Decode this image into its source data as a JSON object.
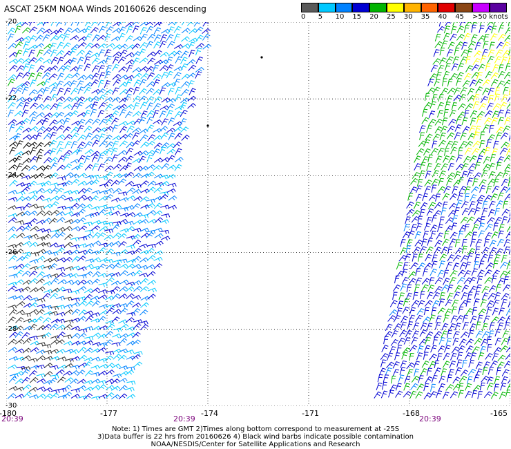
{
  "title": "ASCAT 25KM NOAA Winds 20160626 descending",
  "colorbar": {
    "labels": [
      "0",
      "5",
      "10",
      "15",
      "20",
      "25",
      "30",
      "35",
      "40",
      "45",
      ">50 knots"
    ],
    "colors": [
      "#5a5a5a",
      "#00c8ff",
      "#0082ff",
      "#0000d2",
      "#00b400",
      "#ffff00",
      "#ffb400",
      "#ff6400",
      "#e10000",
      "#8b4513",
      "#c800ff",
      "#5a00a0"
    ]
  },
  "lat_labels": [
    "-20",
    "-22",
    "-24",
    "-26",
    "-28",
    "-30"
  ],
  "lon_labels": [
    "-180",
    "-177",
    "-174",
    "-171",
    "-168",
    "-165"
  ],
  "time_labels": [
    "20:39",
    "20:39",
    "20:39"
  ],
  "notes": [
    "Note: 1) Times are GMT 2)Times along bottom correspond to measurement at -25S",
    "3)Data buffer is 22 hrs from 20160626 4) Black wind barbs indicate possible contamination",
    "NOAA/NESDIS/Center for Satellite Applications and Research"
  ],
  "swaths": [
    {
      "name": "west",
      "colors_main": [
        "#00c8ff",
        "#0082ff",
        "#0000d2"
      ],
      "contam": "#000000"
    },
    {
      "name": "east",
      "colors_main": [
        "#0000d2",
        "#00b400",
        "#ffff00",
        "#0082ff"
      ]
    }
  ]
}
